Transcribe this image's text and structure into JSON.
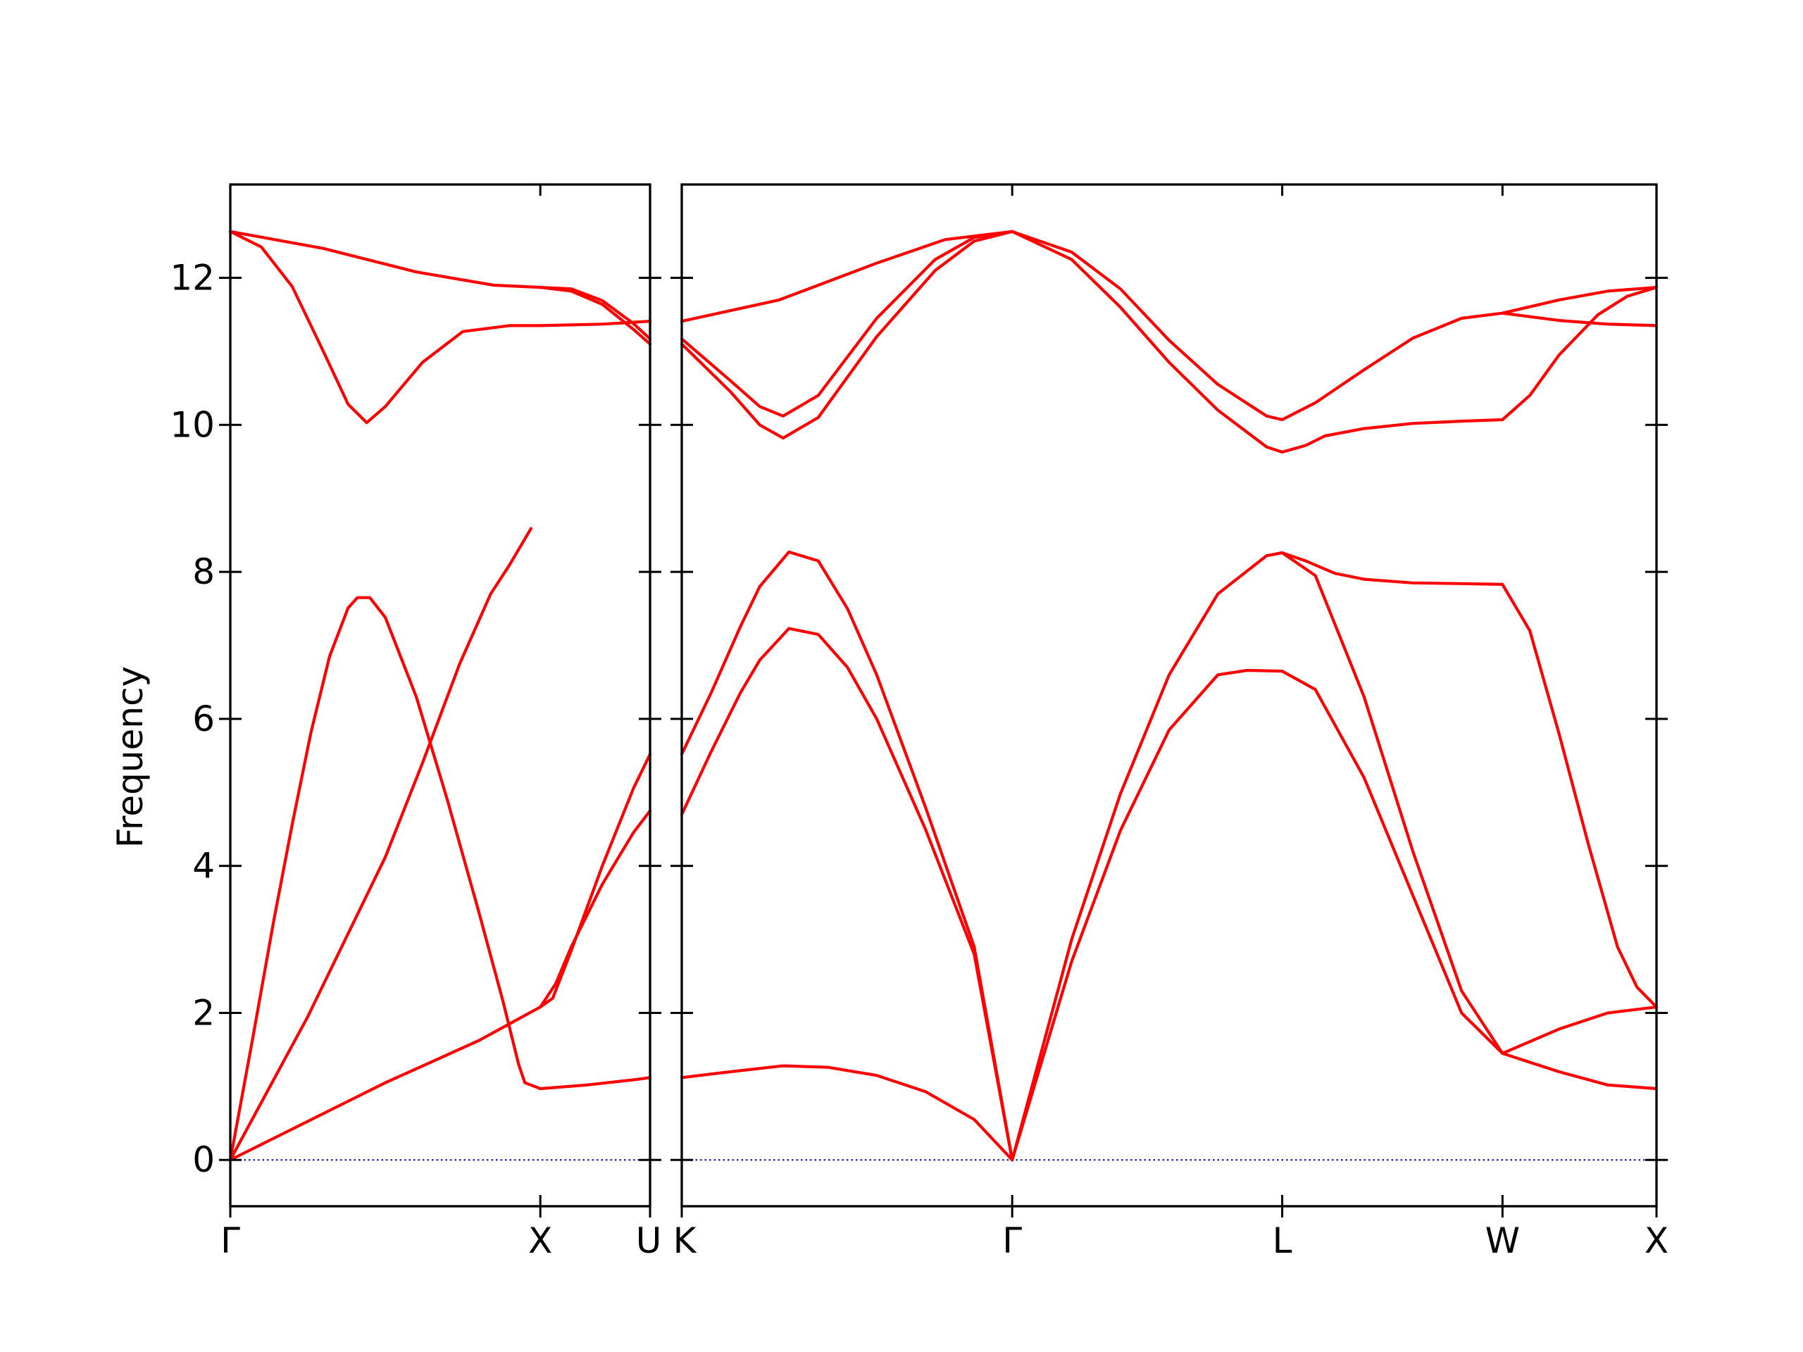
{
  "chart_data": {
    "type": "line",
    "ylabel": "Frequency",
    "ylim": [
      -0.63,
      13.27
    ],
    "yticks": [
      0,
      2,
      4,
      6,
      8,
      10,
      12
    ],
    "colors": {
      "branch": "#ff0000",
      "zero_line": "#1a1ab0",
      "axes": "#000000"
    },
    "segments": [
      {
        "labels": [
          "Γ",
          "X",
          "U"
        ],
        "xlim": [
          0,
          1.354
        ],
        "label_positions": [
          0,
          1,
          1.354
        ],
        "bands": [
          [
            [
              0,
              0
            ],
            [
              0.25,
              1.95
            ],
            [
              0.5,
              4.12
            ],
            [
              0.62,
              5.4
            ],
            [
              0.74,
              6.75
            ],
            [
              0.84,
              7.7
            ],
            [
              0.9,
              8.09
            ],
            [
              0.97,
              8.59
            ]
          ],
          [
            [
              0,
              0
            ],
            [
              0.5,
              1.05
            ],
            [
              0.8,
              1.62
            ],
            [
              1,
              2.08
            ]
          ],
          [
            [
              0,
              0
            ],
            [
              0.07,
              1.6
            ],
            [
              0.14,
              3.25
            ],
            [
              0.2,
              4.57
            ],
            [
              0.26,
              5.81
            ],
            [
              0.32,
              6.85
            ],
            [
              0.38,
              7.51
            ],
            [
              0.41,
              7.65
            ],
            [
              0.45,
              7.65
            ],
            [
              0.5,
              7.38
            ],
            [
              0.6,
              6.3
            ],
            [
              0.7,
              4.9
            ],
            [
              0.8,
              3.4
            ],
            [
              0.88,
              2.15
            ],
            [
              0.93,
              1.3
            ],
            [
              0.95,
              1.05
            ],
            [
              1,
              0.97
            ]
          ],
          [
            [
              0,
              12.63
            ],
            [
              0.3,
              12.4
            ],
            [
              0.6,
              12.08
            ],
            [
              0.85,
              11.9
            ],
            [
              1,
              11.87
            ]
          ],
          [
            [
              0,
              12.63
            ],
            [
              0.1,
              12.42
            ],
            [
              0.2,
              11.88
            ],
            [
              0.3,
              11.0
            ],
            [
              0.38,
              10.28
            ],
            [
              0.44,
              10.03
            ],
            [
              0.5,
              10.25
            ],
            [
              0.62,
              10.85
            ],
            [
              0.75,
              11.27
            ],
            [
              0.9,
              11.35
            ],
            [
              1,
              11.35
            ]
          ],
          [
            [
              1,
              2.08
            ],
            [
              1.04,
              2.2
            ],
            [
              1.1,
              2.85
            ],
            [
              1.2,
              4.0
            ],
            [
              1.3,
              5.05
            ],
            [
              1.354,
              5.52
            ]
          ],
          [
            [
              1,
              2.08
            ],
            [
              1.05,
              2.4
            ],
            [
              1.1,
              2.9
            ],
            [
              1.2,
              3.75
            ],
            [
              1.3,
              4.45
            ],
            [
              1.354,
              4.75
            ]
          ],
          [
            [
              1,
              0.97
            ],
            [
              1.15,
              1.02
            ],
            [
              1.3,
              1.09
            ],
            [
              1.354,
              1.12
            ]
          ],
          [
            [
              1,
              11.87
            ],
            [
              1.1,
              11.85
            ],
            [
              1.2,
              11.69
            ],
            [
              1.3,
              11.38
            ],
            [
              1.354,
              11.17
            ]
          ],
          [
            [
              1,
              11.87
            ],
            [
              1.1,
              11.82
            ],
            [
              1.2,
              11.64
            ],
            [
              1.3,
              11.3
            ],
            [
              1.354,
              11.1
            ]
          ],
          [
            [
              1,
              11.35
            ],
            [
              1.2,
              11.37
            ],
            [
              1.354,
              11.41
            ]
          ]
        ]
      },
      {
        "labels": [
          "K",
          "Γ",
          "L",
          "W",
          "X"
        ],
        "xlim": [
          0,
          1
        ],
        "label_positions": [
          0,
          0.339,
          0.616,
          0.842,
          1
        ],
        "bands": [
          [
            [
              0,
              1.12
            ],
            [
              0.05,
              1.2
            ],
            [
              0.104,
              1.28
            ],
            [
              0.15,
              1.26
            ],
            [
              0.2,
              1.15
            ],
            [
              0.25,
              0.93
            ],
            [
              0.3,
              0.55
            ],
            [
              0.339,
              0
            ]
          ],
          [
            [
              0,
              4.7
            ],
            [
              0.03,
              5.55
            ],
            [
              0.06,
              6.35
            ],
            [
              0.08,
              6.8
            ],
            [
              0.11,
              7.23
            ],
            [
              0.14,
              7.15
            ],
            [
              0.17,
              6.7
            ],
            [
              0.2,
              6.0
            ],
            [
              0.25,
              4.5
            ],
            [
              0.3,
              2.8
            ],
            [
              0.339,
              0
            ]
          ],
          [
            [
              0,
              5.52
            ],
            [
              0.03,
              6.35
            ],
            [
              0.06,
              7.25
            ],
            [
              0.08,
              7.8
            ],
            [
              0.11,
              8.27
            ],
            [
              0.14,
              8.15
            ],
            [
              0.17,
              7.5
            ],
            [
              0.2,
              6.6
            ],
            [
              0.25,
              4.8
            ],
            [
              0.3,
              2.9
            ],
            [
              0.339,
              0
            ]
          ],
          [
            [
              0,
              11.17
            ],
            [
              0.05,
              10.6
            ],
            [
              0.08,
              10.25
            ],
            [
              0.104,
              10.12
            ],
            [
              0.14,
              10.4
            ],
            [
              0.2,
              11.45
            ],
            [
              0.26,
              12.25
            ],
            [
              0.3,
              12.55
            ],
            [
              0.339,
              12.63
            ]
          ],
          [
            [
              0,
              11.1
            ],
            [
              0.05,
              10.45
            ],
            [
              0.08,
              10.0
            ],
            [
              0.104,
              9.82
            ],
            [
              0.14,
              10.1
            ],
            [
              0.2,
              11.2
            ],
            [
              0.26,
              12.1
            ],
            [
              0.3,
              12.5
            ],
            [
              0.339,
              12.63
            ]
          ],
          [
            [
              0,
              11.41
            ],
            [
              0.1,
              11.7
            ],
            [
              0.2,
              12.2
            ],
            [
              0.27,
              12.52
            ],
            [
              0.339,
              12.63
            ]
          ],
          [
            [
              0.339,
              0
            ],
            [
              0.4,
              2.7
            ],
            [
              0.45,
              4.48
            ],
            [
              0.5,
              5.85
            ],
            [
              0.55,
              6.6
            ],
            [
              0.58,
              6.66
            ],
            [
              0.616,
              6.65
            ],
            [
              0.65,
              6.4
            ],
            [
              0.7,
              5.2
            ],
            [
              0.75,
              3.6
            ],
            [
              0.8,
              2.0
            ],
            [
              0.842,
              1.45
            ]
          ],
          [
            [
              0.339,
              0
            ],
            [
              0.4,
              3.0
            ],
            [
              0.45,
              4.98
            ],
            [
              0.5,
              6.6
            ],
            [
              0.55,
              7.7
            ],
            [
              0.6,
              8.22
            ],
            [
              0.616,
              8.26
            ],
            [
              0.65,
              7.95
            ],
            [
              0.7,
              6.3
            ],
            [
              0.75,
              4.2
            ],
            [
              0.8,
              2.3
            ],
            [
              0.842,
              1.45
            ]
          ],
          [
            [
              0.339,
              12.63
            ],
            [
              0.4,
              12.25
            ],
            [
              0.45,
              11.6
            ],
            [
              0.5,
              10.85
            ],
            [
              0.55,
              10.2
            ],
            [
              0.6,
              9.7
            ],
            [
              0.616,
              9.63
            ],
            [
              0.64,
              9.72
            ],
            [
              0.66,
              9.85
            ],
            [
              0.7,
              9.95
            ],
            [
              0.75,
              10.02
            ],
            [
              0.8,
              10.05
            ],
            [
              0.842,
              10.07
            ]
          ],
          [
            [
              0.339,
              12.63
            ],
            [
              0.4,
              12.35
            ],
            [
              0.45,
              11.85
            ],
            [
              0.5,
              11.15
            ],
            [
              0.55,
              10.55
            ],
            [
              0.6,
              10.12
            ],
            [
              0.616,
              10.07
            ],
            [
              0.65,
              10.3
            ],
            [
              0.7,
              10.75
            ],
            [
              0.75,
              11.18
            ],
            [
              0.8,
              11.45
            ],
            [
              0.842,
              11.52
            ]
          ],
          [
            [
              0.616,
              8.26
            ],
            [
              0.64,
              8.15
            ],
            [
              0.67,
              7.98
            ],
            [
              0.7,
              7.9
            ],
            [
              0.75,
              7.85
            ],
            [
              0.8,
              7.84
            ],
            [
              0.842,
              7.83
            ]
          ],
          [
            [
              0.842,
              1.45
            ],
            [
              0.9,
              1.78
            ],
            [
              0.95,
              2.0
            ],
            [
              1,
              2.08
            ]
          ],
          [
            [
              0.842,
              1.45
            ],
            [
              0.9,
              1.2
            ],
            [
              0.95,
              1.02
            ],
            [
              1,
              0.97
            ]
          ],
          [
            [
              0.842,
              7.83
            ],
            [
              0.87,
              7.2
            ],
            [
              0.9,
              5.8
            ],
            [
              0.93,
              4.3
            ],
            [
              0.96,
              2.9
            ],
            [
              0.98,
              2.35
            ],
            [
              1,
              2.08
            ]
          ],
          [
            [
              0.842,
              10.07
            ],
            [
              0.87,
              10.4
            ],
            [
              0.9,
              10.95
            ],
            [
              0.94,
              11.5
            ],
            [
              0.97,
              11.75
            ],
            [
              1,
              11.87
            ]
          ],
          [
            [
              0.842,
              11.52
            ],
            [
              0.9,
              11.7
            ],
            [
              0.95,
              11.82
            ],
            [
              1,
              11.87
            ]
          ],
          [
            [
              0.842,
              11.52
            ],
            [
              0.9,
              11.42
            ],
            [
              0.95,
              11.37
            ],
            [
              1,
              11.35
            ]
          ]
        ]
      }
    ]
  }
}
